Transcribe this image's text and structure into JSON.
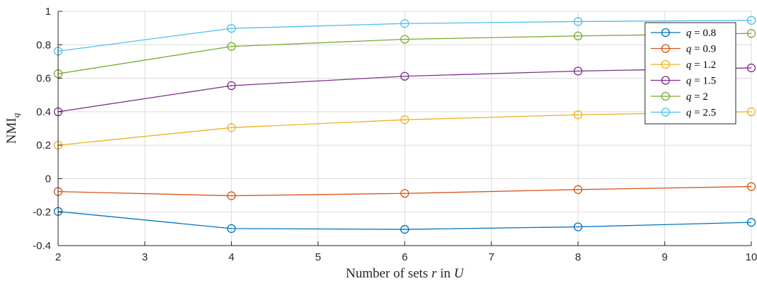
{
  "chart_data": {
    "type": "line",
    "xlabel_parts": [
      {
        "text": "Number of sets ",
        "italic": false
      },
      {
        "text": "r",
        "italic": true
      },
      {
        "text": " in ",
        "italic": false
      },
      {
        "text": "U",
        "italic": true
      }
    ],
    "ylabel_base": "NMI",
    "ylabel_sub": "q",
    "xlim": [
      2,
      10
    ],
    "ylim": [
      -0.4,
      1
    ],
    "xticks": [
      2,
      3,
      4,
      5,
      6,
      7,
      8,
      9,
      10
    ],
    "yticks": [
      -0.4,
      -0.2,
      0,
      0.2,
      0.4,
      0.6,
      0.8,
      1
    ],
    "ytick_labels": [
      "-0.4",
      "-0.2",
      "0",
      "0.2",
      "0.4",
      "0.6",
      "0.8",
      "1"
    ],
    "grid": true,
    "legend_position": "top-right",
    "x": [
      2,
      4,
      6,
      8,
      10
    ],
    "series": [
      {
        "name": "q = 0.8",
        "q": "0.8",
        "color": "#0072BD",
        "values": [
          -0.196,
          -0.298,
          -0.303,
          -0.288,
          -0.261
        ]
      },
      {
        "name": "q = 0.9",
        "q": "0.9",
        "color": "#D95319",
        "values": [
          -0.077,
          -0.102,
          -0.088,
          -0.065,
          -0.047
        ]
      },
      {
        "name": "q = 1.2",
        "q": "1.2",
        "color": "#EDB120",
        "values": [
          0.2,
          0.305,
          0.352,
          0.382,
          0.4
        ]
      },
      {
        "name": "q = 1.5",
        "q": "1.5",
        "color": "#7E2F8E",
        "values": [
          0.4,
          0.556,
          0.612,
          0.643,
          0.662
        ]
      },
      {
        "name": "q = 2",
        "q": "2",
        "color": "#77AC30",
        "values": [
          0.627,
          0.79,
          0.833,
          0.853,
          0.868
        ]
      },
      {
        "name": "q = 2.5",
        "q": "2.5",
        "color": "#4DBEEE",
        "values": [
          0.762,
          0.898,
          0.927,
          0.939,
          0.946
        ]
      }
    ]
  }
}
